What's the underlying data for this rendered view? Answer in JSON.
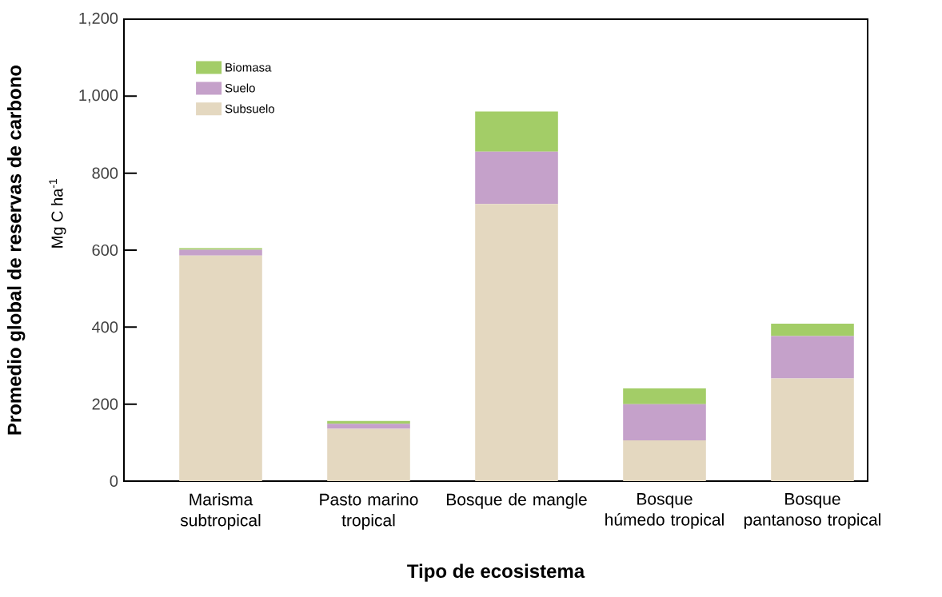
{
  "chart_data": {
    "type": "bar",
    "stacked": true,
    "xlabel": "Tipo de ecosistema",
    "ylabel": "Promedio global de reservas de carbono",
    "annotations": [
      "Mg C ha$^{-1}$"
    ],
    "categories": [
      "Marisma subtropical",
      "Pasto marino tropical",
      "Bosque de mangle",
      "Bosque húmedo tropical",
      "Bosque pantanoso tropical"
    ],
    "series": [
      {
        "name": "Subsuelo",
        "color": "#e4d8c0",
        "values": [
          586,
          136,
          720,
          106,
          267
        ]
      },
      {
        "name": "Suelo",
        "color": "#c5a1ca",
        "values": [
          15,
          13,
          136,
          94,
          110
        ]
      },
      {
        "name": "Biomasa",
        "color": "#a3cd67",
        "values": [
          4,
          7,
          104,
          41,
          32
        ]
      }
    ],
    "ylim": [
      0,
      1200
    ],
    "yticks": [
      0,
      200,
      400,
      600,
      800,
      {
        "value": 1000,
        "label": "1,000"
      },
      {
        "value": 1200,
        "label": "1,200"
      }
    ],
    "legend": "top left",
    "grid": false
  }
}
